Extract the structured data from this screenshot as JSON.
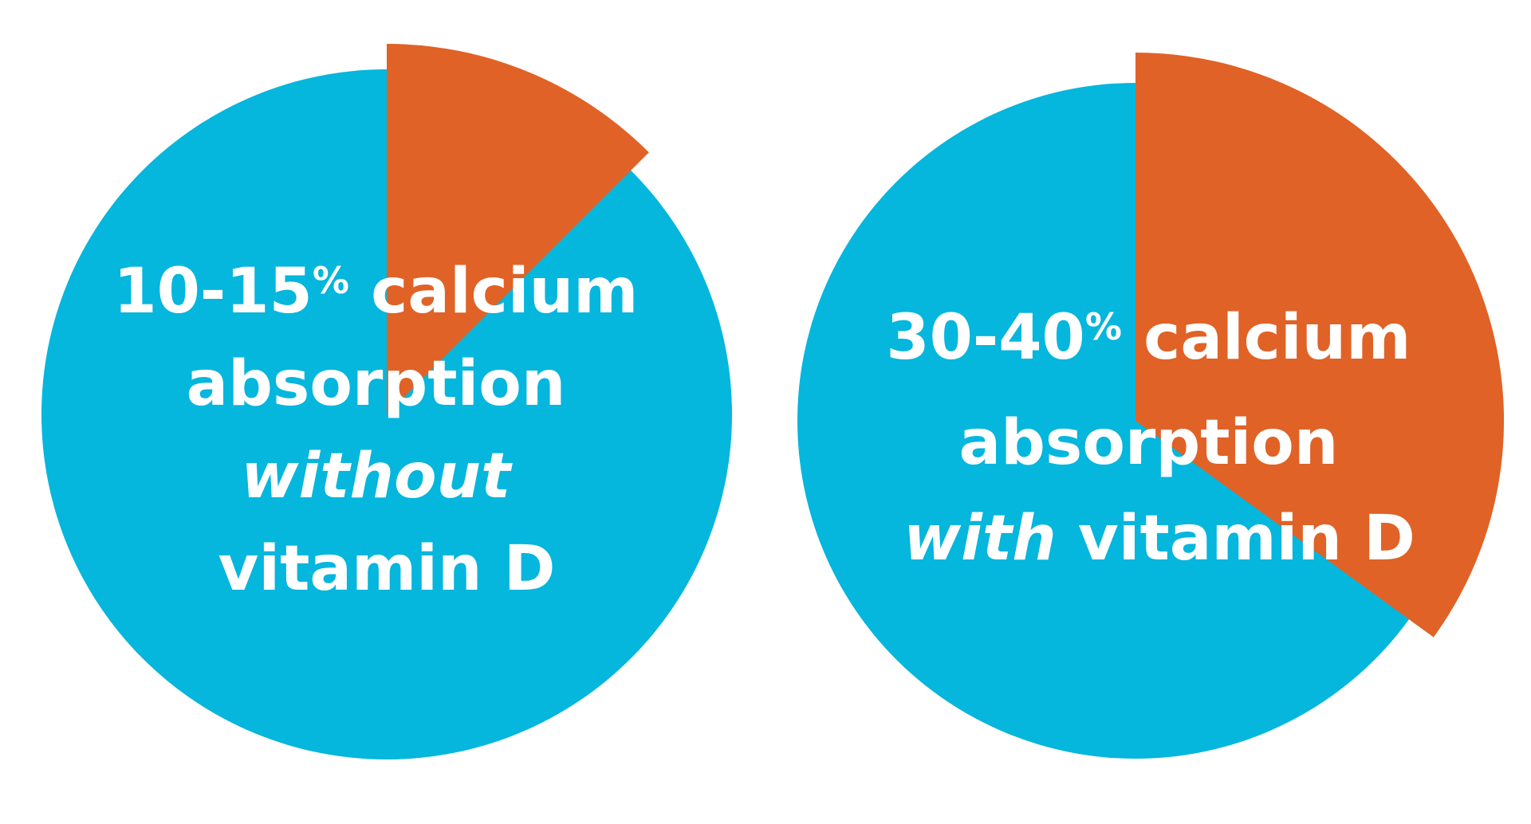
{
  "colors": {
    "background": "#ffffff",
    "base": "#05b6dd",
    "highlight": "#e06227",
    "label": "#ffffff"
  },
  "chart_data": [
    {
      "type": "pie",
      "values": [
        12.5,
        87.5
      ],
      "label": {
        "line1": {
          "number": "10-15",
          "percent": "%",
          "rest": " calcium"
        },
        "line2": "absorption",
        "line3": [
          {
            "text": "without",
            "emphasis": true
          }
        ],
        "line4": "vitamin D"
      }
    },
    {
      "type": "pie",
      "values": [
        35,
        65
      ],
      "label": {
        "line1": {
          "number": "30-40",
          "percent": "%",
          "rest": " calcium"
        },
        "line2": "absorption",
        "line3": [
          {
            "text": "with",
            "emphasis": true
          },
          {
            "text": " vitamin D",
            "emphasis": false
          }
        ]
      }
    }
  ]
}
